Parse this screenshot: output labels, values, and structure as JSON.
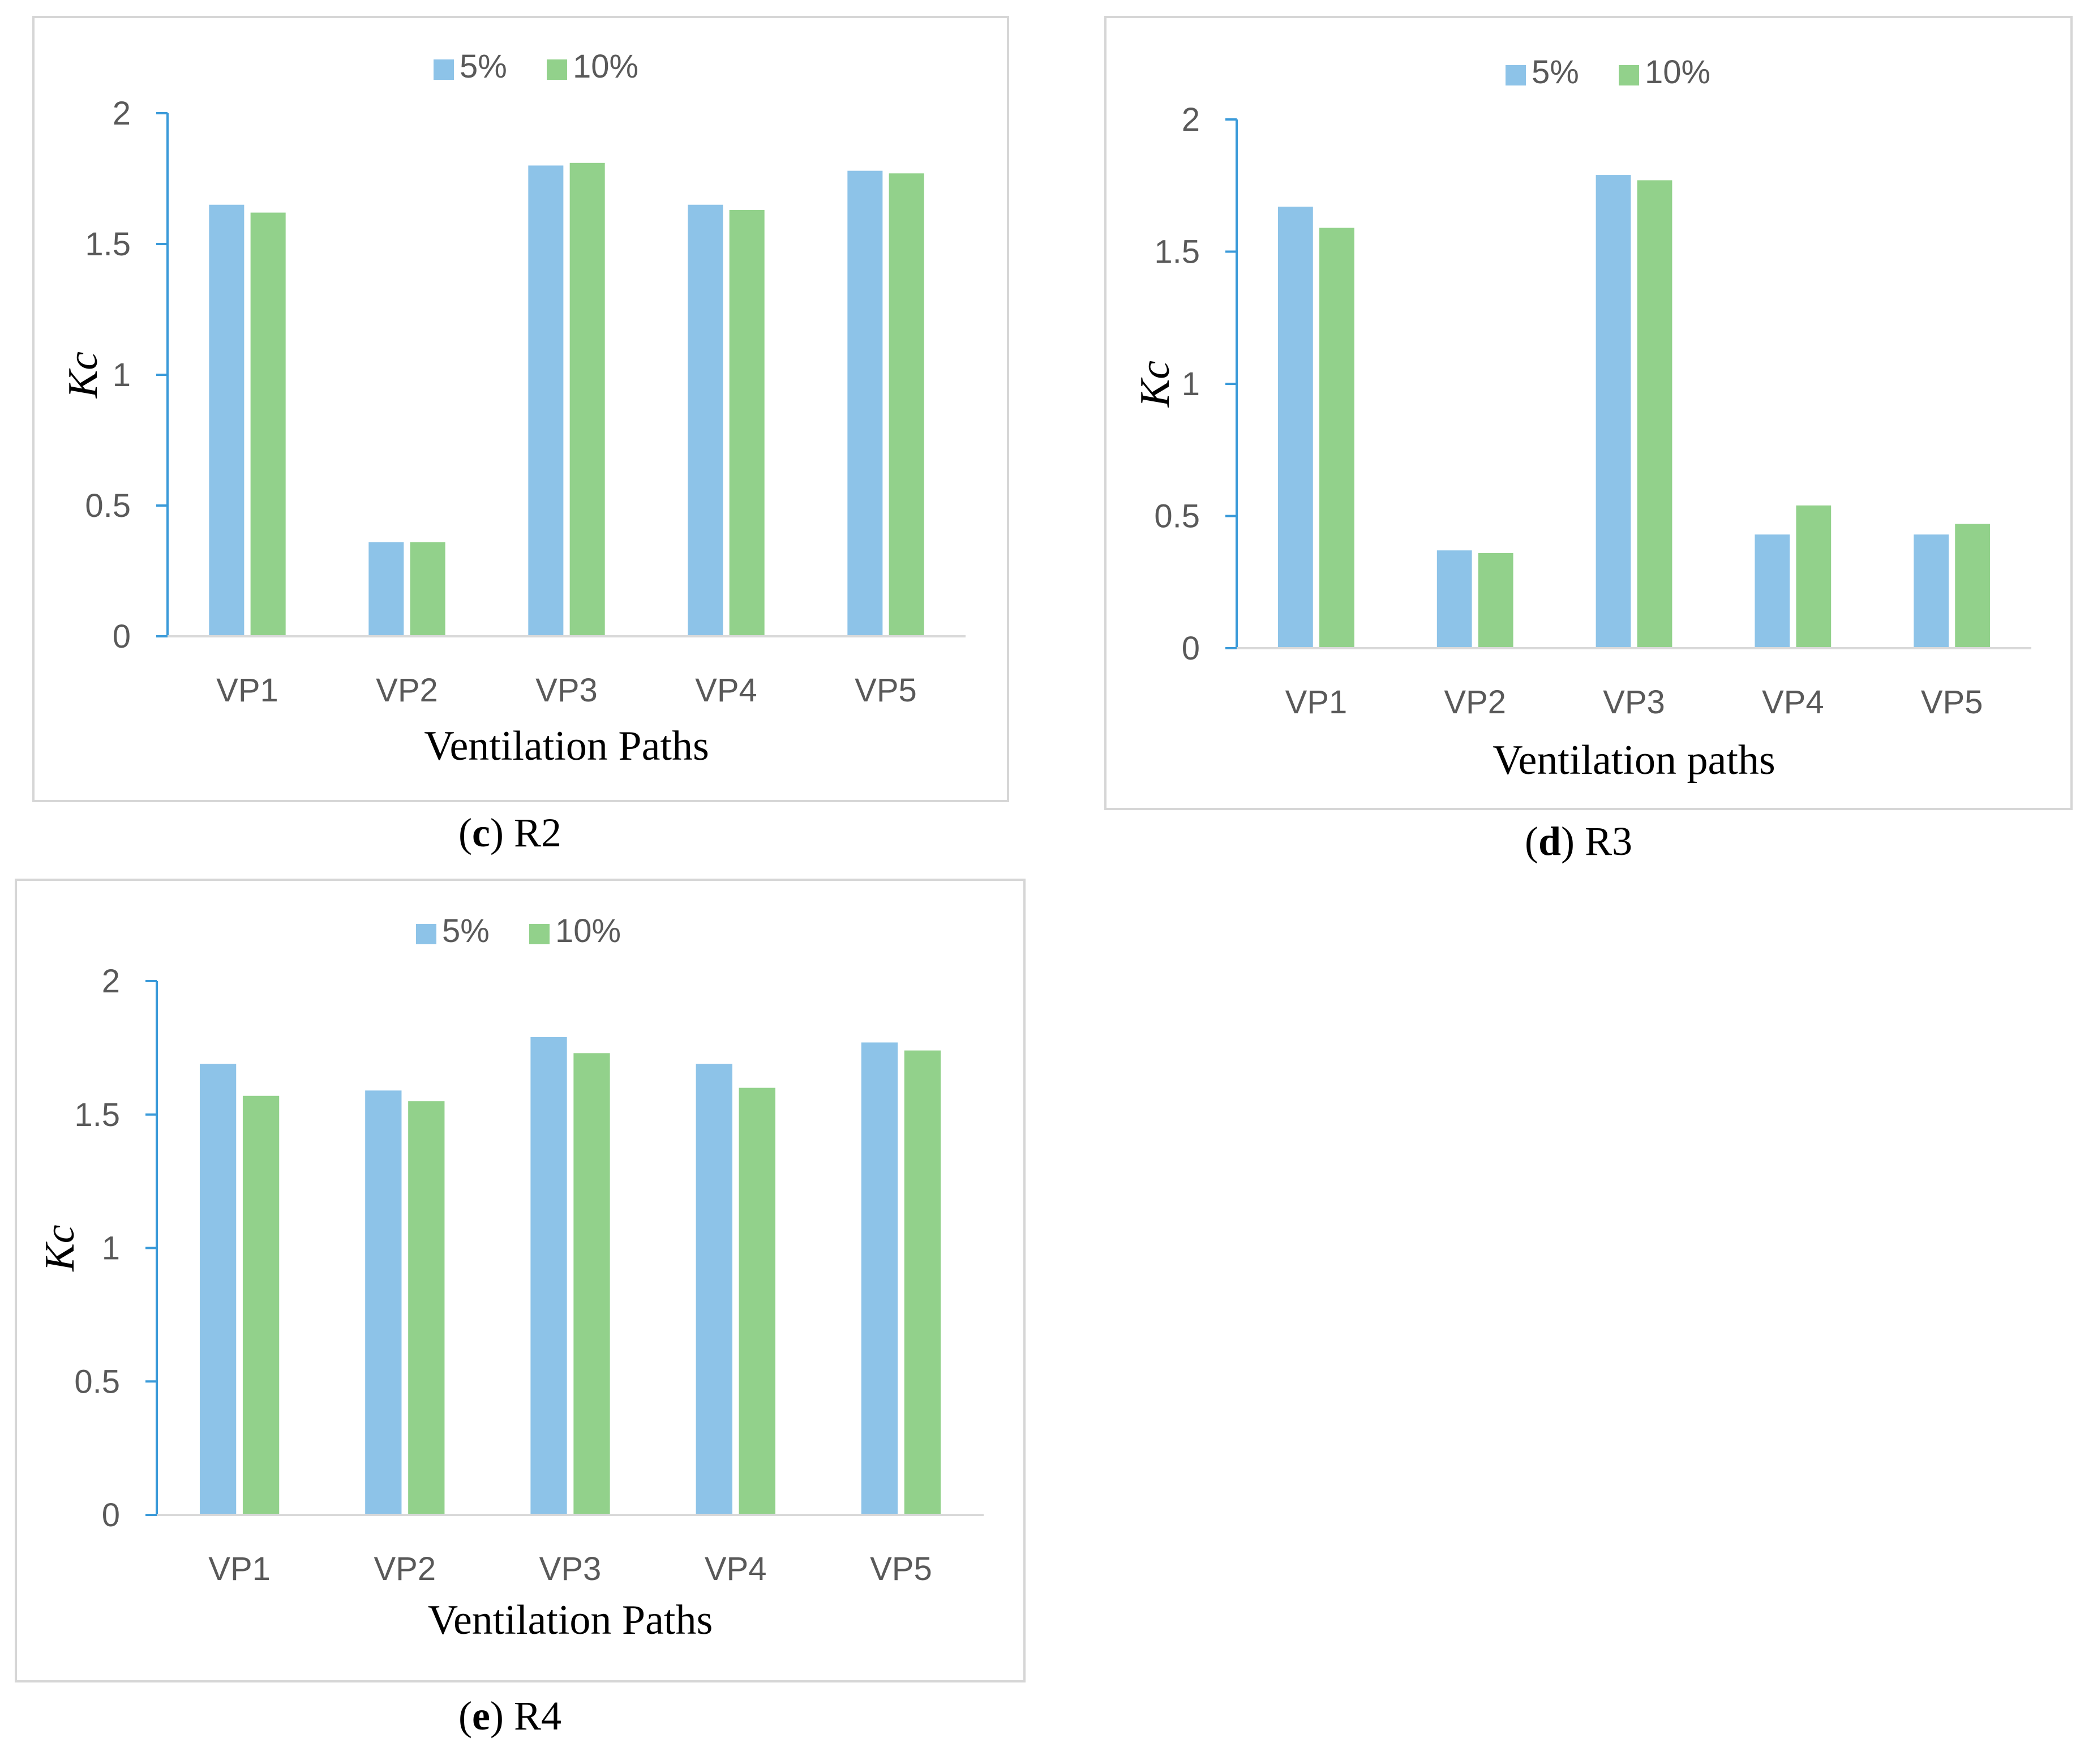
{
  "colors": {
    "series_5": "#8dc3e8",
    "series_10": "#92d18b",
    "axis": "#3a9ad9",
    "tick_text": "#595959",
    "frame": "#d6d6d6"
  },
  "chart_data": [
    {
      "type": "bar",
      "id": "c",
      "caption_letter": "c",
      "caption_text": "R2",
      "xlabel": "Ventilation Paths",
      "ylabel": "Kc",
      "ylim": [
        0,
        2
      ],
      "yticks": [
        "0",
        "0.5",
        "1",
        "1.5",
        "2"
      ],
      "categories": [
        "VP1",
        "VP2",
        "VP3",
        "VP4",
        "VP5"
      ],
      "legend_position": "top-center",
      "series": [
        {
          "name": "5%",
          "values": [
            1.65,
            0.36,
            1.8,
            1.65,
            1.78
          ]
        },
        {
          "name": "10%",
          "values": [
            1.62,
            0.36,
            1.81,
            1.63,
            1.77
          ]
        }
      ]
    },
    {
      "type": "bar",
      "id": "d",
      "caption_letter": "d",
      "caption_text": "R3",
      "xlabel": "Ventilation paths",
      "ylabel": "Kc",
      "ylim": [
        0,
        2
      ],
      "yticks": [
        "0",
        "0.5",
        "1",
        "1.5",
        "2"
      ],
      "categories": [
        "VP1",
        "VP2",
        "VP3",
        "VP4",
        "VP5"
      ],
      "legend_position": "top-center",
      "series": [
        {
          "name": "5%",
          "values": [
            1.67,
            0.37,
            1.79,
            0.43,
            0.43
          ]
        },
        {
          "name": "10%",
          "values": [
            1.59,
            0.36,
            1.77,
            0.54,
            0.47
          ]
        }
      ]
    },
    {
      "type": "bar",
      "id": "e",
      "caption_letter": "e",
      "caption_text": "R4",
      "xlabel": "Ventilation Paths",
      "ylabel": "Kc",
      "ylim": [
        0,
        2
      ],
      "yticks": [
        "0",
        "0.5",
        "1",
        "1.5",
        "2"
      ],
      "categories": [
        "VP1",
        "VP2",
        "VP3",
        "VP4",
        "VP5"
      ],
      "legend_position": "top-center",
      "series": [
        {
          "name": "5%",
          "values": [
            1.69,
            1.59,
            1.79,
            1.69,
            1.77
          ]
        },
        {
          "name": "10%",
          "values": [
            1.57,
            1.55,
            1.73,
            1.6,
            1.74
          ]
        }
      ]
    }
  ]
}
